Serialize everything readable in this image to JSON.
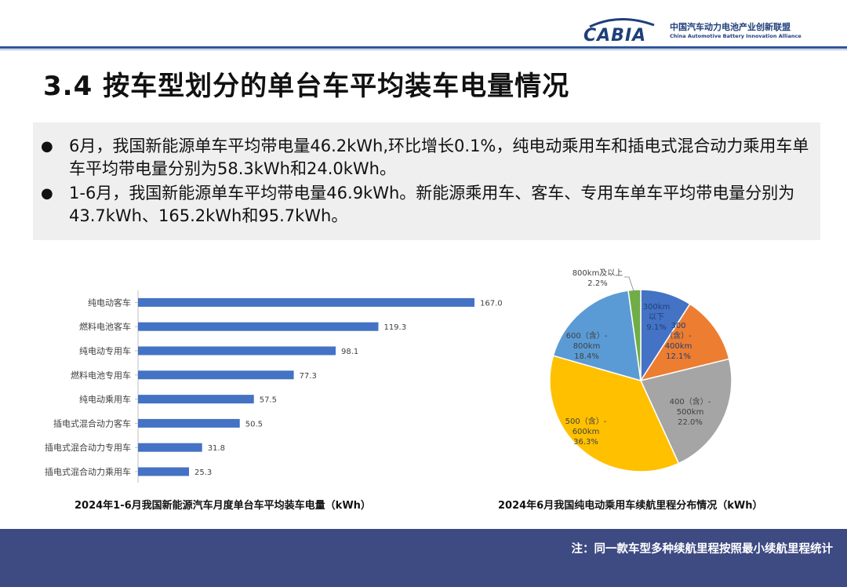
{
  "header": {
    "logo_text": "CABIA",
    "org_cn": "中国汽车动力电池产业创新联盟",
    "org_en": "China Automotive Battery Innovation Alliance"
  },
  "page_title": "3.4 按车型划分的单台车平均装车电量情况",
  "summary": {
    "bullets": [
      "6月，我国新能源单车平均带电量46.2kWh,环比增长0.1%，纯电动乘用车和插电式混合动力乘用车单车平均带电量分别为58.3kWh和24.0kWh。",
      "1-6月，我国新能源单车平均带电量46.9kWh。新能源乘用车、客车、专用车单车平均带电量分别为43.7kWh、165.2kWh和95.7kWh。"
    ]
  },
  "chart_data": [
    {
      "type": "bar",
      "orientation": "horizontal",
      "title": "2024年1-6月我国新能源汽车月度单台车平均装车电量（kWh）",
      "categories": [
        "纯电动客车",
        "燃料电池客车",
        "纯电动专用车",
        "燃料电池专用车",
        "纯电动乘用车",
        "插电式混合动力客车",
        "插电式混合动力专用车",
        "插电式混合动力乘用车"
      ],
      "values": [
        167.0,
        119.3,
        98.1,
        77.3,
        57.5,
        50.5,
        31.8,
        25.3
      ],
      "value_labels": [
        "167.0",
        "119.3",
        "98.1",
        "77.3",
        "57.5",
        "50.5",
        "31.8",
        "25.3"
      ],
      "xlim": [
        0,
        167
      ],
      "color": "#4472c4",
      "grid": false
    },
    {
      "type": "pie",
      "title": "2024年6月我国纯电动乘用车续航里程分布情况（kWh）",
      "slices": [
        {
          "label": [
            "300km",
            "以下",
            "9.1%"
          ],
          "value": 9.1,
          "color": "#4472c4",
          "label_color": "#1f3f7a"
        },
        {
          "label": [
            "300",
            "（含）-",
            "400km",
            "12.1%"
          ],
          "value": 12.1,
          "color": "#ed7d31",
          "label_color": "#1f3f7a"
        },
        {
          "label": [
            "400（含）-",
            "500km",
            "22.0%"
          ],
          "value": 22.0,
          "color": "#a5a5a5",
          "label_color": "#404040"
        },
        {
          "label": [
            "500（含）-",
            "600km",
            "36.3%"
          ],
          "value": 36.3,
          "color": "#ffc000",
          "label_color": "#404040"
        },
        {
          "label": [
            "600（含）-",
            "800km",
            "18.4%"
          ],
          "value": 18.4,
          "color": "#5b9bd5",
          "label_color": "#404040"
        },
        {
          "label": [
            "800km及以上",
            "2.2%"
          ],
          "value": 2.2,
          "color": "#70ad47",
          "label_color": "#404040"
        }
      ],
      "legend": "none"
    }
  ],
  "footer": {
    "note": "注：同一款车型多种续航里程按照最小续航里程统计"
  }
}
